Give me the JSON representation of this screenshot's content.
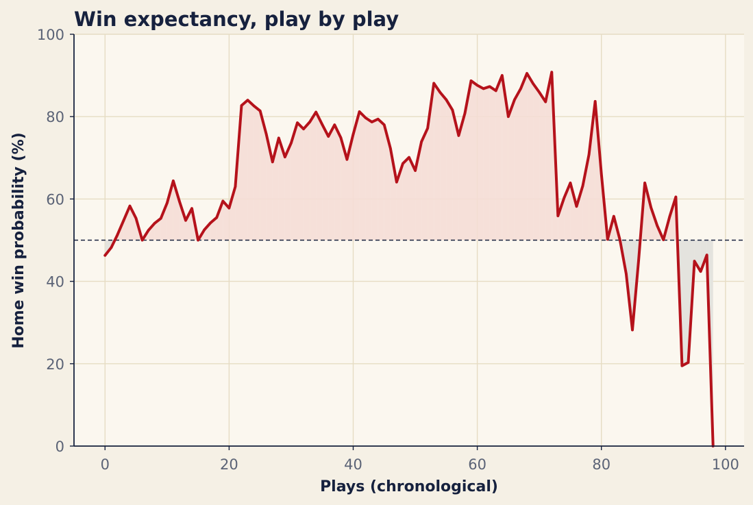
{
  "chart_data": {
    "type": "line",
    "title": "Win expectancy, play by play",
    "xlabel": "Plays (chronological)",
    "ylabel": "Home win probability (%)",
    "xlim": [
      -5,
      103
    ],
    "ylim": [
      0,
      100
    ],
    "x_ticks": [
      0,
      20,
      40,
      60,
      80,
      100
    ],
    "y_ticks": [
      0,
      20,
      40,
      60,
      80,
      100
    ],
    "grid": true,
    "reference_line": {
      "y": 50,
      "style": "dashed"
    },
    "fill_above_reference_color": "#f5ddd6",
    "fill_below_reference_color": "#e4e3de",
    "line_color": "#b5121b",
    "series": [
      {
        "x": [
          0,
          1,
          2,
          3,
          4,
          5,
          6,
          7,
          8,
          9,
          10,
          11,
          12,
          13,
          14,
          15,
          16,
          17,
          18,
          19,
          20,
          21,
          22,
          23,
          24,
          25,
          26,
          27,
          28,
          29,
          30,
          31,
          32,
          33,
          34,
          35,
          36,
          37,
          38,
          39,
          40,
          41,
          42,
          43,
          44,
          45,
          46,
          47,
          48,
          49,
          50,
          51,
          52,
          53,
          54,
          55,
          56,
          57,
          58,
          59,
          60,
          61,
          62,
          63,
          64,
          65,
          66,
          67,
          68,
          69,
          70,
          71,
          72,
          73,
          74,
          75,
          76,
          77,
          78,
          79,
          80,
          81,
          82,
          83,
          84,
          85,
          86,
          87,
          88,
          89,
          90,
          91,
          92,
          93,
          94,
          95,
          96,
          97,
          98
        ],
        "values": [
          46.3,
          48.2,
          51.3,
          54.8,
          58.3,
          55.3,
          50.0,
          52.4,
          54.1,
          55.3,
          59.0,
          64.4,
          59.4,
          54.8,
          57.7,
          50.0,
          52.5,
          54.2,
          55.5,
          59.5,
          57.8,
          63.0,
          82.7,
          84.0,
          82.6,
          81.4,
          75.7,
          69.0,
          74.8,
          70.2,
          73.6,
          78.5,
          77.0,
          78.7,
          81.1,
          78.1,
          75.2,
          78.0,
          74.9,
          69.6,
          75.7,
          81.2,
          79.7,
          78.7,
          79.4,
          78.0,
          72.3,
          64.1,
          68.6,
          70.1,
          66.9,
          73.9,
          77.2,
          88.1,
          85.9,
          84.1,
          81.6,
          75.4,
          80.8,
          88.7,
          87.6,
          86.8,
          87.3,
          86.3,
          90.0,
          80.0,
          84.1,
          86.8,
          90.5,
          88.0,
          85.9,
          83.6,
          90.8,
          55.9,
          60.3,
          63.9,
          58.2,
          63.2,
          70.8,
          83.7,
          66.1,
          50.2,
          55.8,
          50.0,
          41.8,
          28.2,
          45.1,
          63.9,
          57.9,
          53.5,
          50.1,
          55.7,
          60.5,
          19.5,
          20.3,
          44.9,
          42.4,
          46.4,
          0.0
        ]
      }
    ]
  }
}
